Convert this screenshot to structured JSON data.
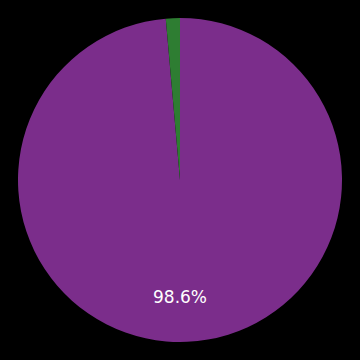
{
  "chart_data": {
    "type": "pie",
    "values": [
      98.6,
      1.4
    ],
    "colors": [
      "#7b2d8b",
      "#2e7d32"
    ],
    "annotation": "98.6%"
  }
}
